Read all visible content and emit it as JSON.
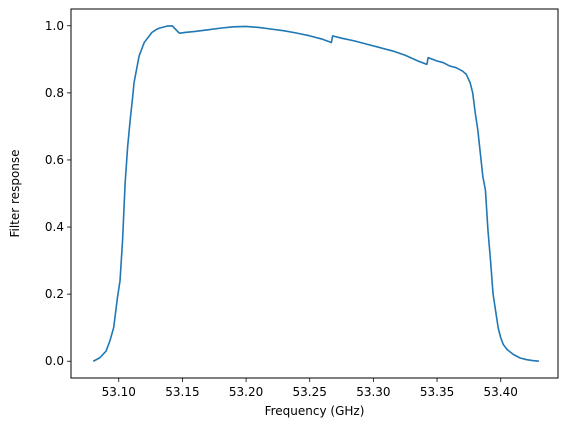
{
  "chart_data": {
    "type": "line",
    "title": "",
    "xlabel": "Frequency (GHz)",
    "ylabel": "Filter response",
    "xlim": [
      53.0625,
      53.445
    ],
    "ylim": [
      -0.05,
      1.05
    ],
    "xticks": [
      53.1,
      53.15,
      53.2,
      53.25,
      53.3,
      53.35,
      53.4
    ],
    "xtick_labels": [
      "53.10",
      "53.15",
      "53.20",
      "53.25",
      "53.30",
      "53.35",
      "53.40"
    ],
    "yticks": [
      0.0,
      0.2,
      0.4,
      0.6,
      0.8,
      1.0
    ],
    "ytick_labels": [
      "0.0",
      "0.2",
      "0.4",
      "0.6",
      "0.8",
      "1.0"
    ],
    "grid": false,
    "legend": "none",
    "series": [
      {
        "color": "#1f77b4",
        "x": [
          53.08,
          53.085,
          53.09,
          53.093,
          53.096,
          53.099,
          53.101,
          53.103,
          53.105,
          53.107,
          53.109,
          53.111,
          53.112,
          53.114,
          53.116,
          53.118,
          53.12,
          53.122,
          53.124,
          53.126,
          53.128,
          53.13,
          53.132,
          53.135,
          53.138,
          53.142,
          53.147,
          53.148,
          53.152,
          53.16,
          53.17,
          53.18,
          53.19,
          53.2,
          53.21,
          53.22,
          53.23,
          53.24,
          53.25,
          53.26,
          53.267,
          53.268,
          53.275,
          53.285,
          53.295,
          53.305,
          53.315,
          53.325,
          53.335,
          53.342,
          53.343,
          53.35,
          53.355,
          53.36,
          53.365,
          53.37,
          53.373,
          53.376,
          53.378,
          53.38,
          53.382,
          53.384,
          53.386,
          53.388,
          53.39,
          53.392,
          53.394,
          53.396,
          53.398,
          53.4,
          53.402,
          53.405,
          53.41,
          53.415,
          53.42,
          53.425,
          53.43
        ],
        "y": [
          0.0,
          0.01,
          0.03,
          0.06,
          0.1,
          0.19,
          0.24,
          0.36,
          0.53,
          0.64,
          0.72,
          0.79,
          0.83,
          0.87,
          0.91,
          0.93,
          0.95,
          0.96,
          0.97,
          0.98,
          0.985,
          0.99,
          0.993,
          0.996,
          0.999,
          1.0,
          0.98,
          0.978,
          0.98,
          0.983,
          0.988,
          0.993,
          0.997,
          0.998,
          0.995,
          0.99,
          0.985,
          0.978,
          0.97,
          0.96,
          0.95,
          0.97,
          0.963,
          0.955,
          0.945,
          0.935,
          0.925,
          0.912,
          0.895,
          0.885,
          0.905,
          0.895,
          0.89,
          0.88,
          0.875,
          0.865,
          0.855,
          0.83,
          0.8,
          0.74,
          0.69,
          0.62,
          0.55,
          0.51,
          0.39,
          0.3,
          0.2,
          0.15,
          0.1,
          0.07,
          0.05,
          0.035,
          0.02,
          0.01,
          0.005,
          0.002,
          0.0
        ]
      }
    ]
  }
}
